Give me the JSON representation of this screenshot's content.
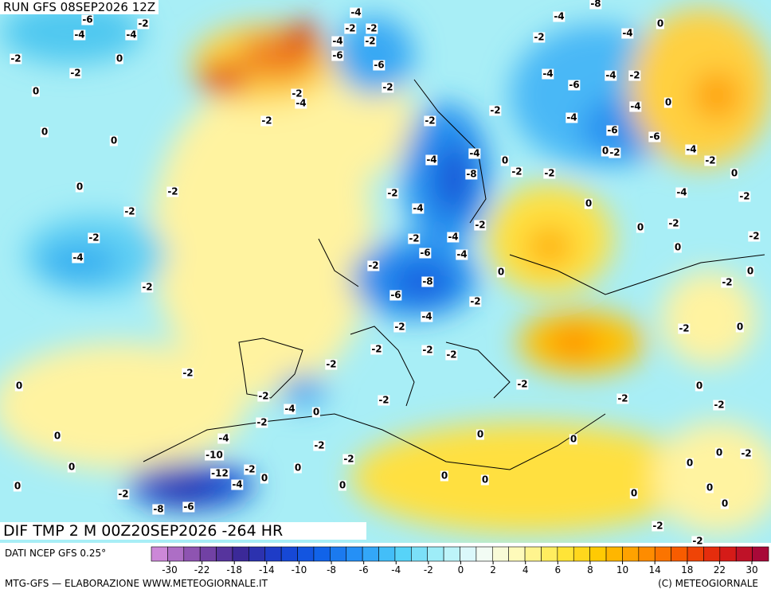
{
  "header": {
    "run": "RUN GFS 08SEP2026 12Z",
    "title": "DIF TMP 2 M 00Z20SEP2026 -264 HR"
  },
  "map": {
    "contour_labels": [
      -6,
      -4,
      -4,
      -2,
      -2,
      -2,
      0,
      0,
      -4,
      -2,
      -2,
      -2,
      -4,
      -6,
      -6,
      -2,
      -4,
      -2,
      -2,
      0,
      0,
      0,
      -2,
      -2,
      -2,
      -4,
      -2,
      -2,
      0,
      0,
      0,
      0,
      -2,
      -8,
      -6,
      -12,
      -4,
      -2,
      0,
      -10,
      -4,
      -2,
      -4,
      0,
      -2,
      -2,
      0,
      -2,
      -2,
      0,
      -2,
      -2,
      -2,
      -4,
      -2,
      -6,
      -8,
      -6,
      -4,
      -2,
      -2,
      -2,
      -4,
      -4,
      -4,
      -8,
      -2,
      -4,
      -2,
      0,
      -2,
      -2,
      -2,
      -2,
      -4,
      -8,
      -4,
      0,
      -4,
      -6,
      -4,
      -2,
      -4,
      0,
      -4,
      -6,
      -6,
      0,
      -2,
      -4,
      -2,
      0,
      -2,
      -4,
      0,
      0,
      -2,
      -2,
      0,
      0,
      -2,
      -2,
      0,
      -2,
      0,
      -2,
      -2,
      0,
      -2,
      -2,
      0,
      0,
      0,
      0,
      0,
      0,
      0,
      -2,
      0,
      0,
      -2,
      -2,
      0
    ]
  },
  "footer": {
    "source": "DATI NCEP GFS 0.25°",
    "credit": "MTG-GFS — ELABORAZIONE WWW.METEOGIORNALE.IT",
    "copyright": "(C) METEOGIORNALE"
  },
  "colorbar": {
    "ticks": [
      -30,
      -22,
      -18,
      -14,
      -10,
      -8,
      -6,
      -4,
      -2,
      0,
      2,
      4,
      6,
      8,
      10,
      14,
      18,
      22,
      30
    ]
  }
}
